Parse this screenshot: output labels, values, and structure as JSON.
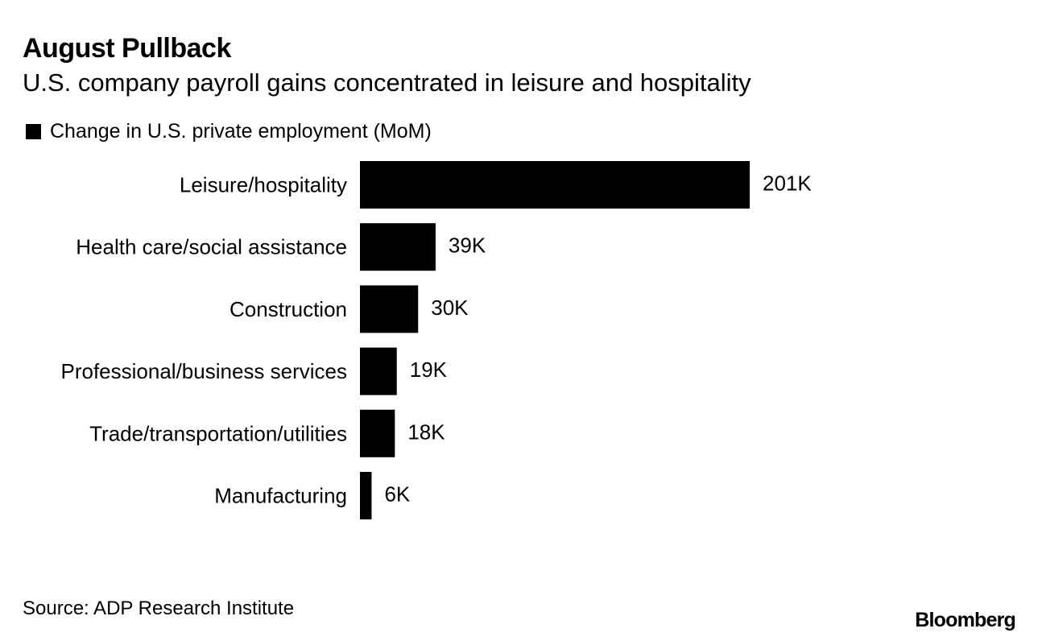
{
  "header": {
    "title": "August Pullback",
    "subtitle": "U.S. company payroll gains concentrated in leisure and hospitality"
  },
  "legend": {
    "label": "Change in U.S. private employment (MoM)",
    "color": "#000000"
  },
  "footer": {
    "source": "Source: ADP Research Institute",
    "brand": "Bloomberg"
  },
  "chart_data": {
    "type": "bar",
    "orientation": "horizontal",
    "title": "August Pullback",
    "subtitle": "U.S. company payroll gains concentrated in leisure and hospitality",
    "xlabel": "",
    "ylabel": "",
    "grid": false,
    "legend_position": "top-left",
    "categories": [
      "Leisure/hospitality",
      "Health care/social assistance",
      "Construction",
      "Professional/business services",
      "Trade/transportation/utilities",
      "Manufacturing"
    ],
    "series": [
      {
        "name": "Change in U.S. private employment (MoM)",
        "color": "#000000",
        "values": [
          201,
          39,
          30,
          19,
          18,
          6
        ],
        "labels": [
          "201K",
          "39K",
          "30K",
          "19K",
          "18K",
          "6K"
        ]
      }
    ],
    "units": "thousands",
    "xlim": [
      0,
      201
    ]
  }
}
